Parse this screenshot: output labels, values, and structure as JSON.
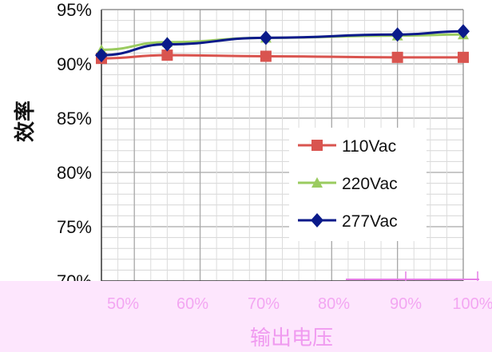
{
  "chart_data": {
    "type": "line",
    "title": "",
    "xlabel": "输出电压",
    "ylabel": "效率",
    "categories": [
      "50%",
      "60%",
      "70%",
      "80%",
      "90%",
      "100%"
    ],
    "x": [
      50,
      60,
      70,
      80,
      90,
      100
    ],
    "xlim": [
      45,
      100
    ],
    "ylim": [
      70,
      95
    ],
    "y_ticks": [
      "70%",
      "75%",
      "80%",
      "85%",
      "90%",
      "95%"
    ],
    "grid": true,
    "legend_position": "right",
    "series": [
      {
        "name": "110Vac",
        "color": "#d9544f",
        "marker": "square",
        "x": [
          45,
          55,
          70,
          90,
          100
        ],
        "values": [
          90.5,
          90.8,
          90.7,
          90.6,
          90.6
        ]
      },
      {
        "name": "220Vac",
        "color": "#9acb5f",
        "marker": "triangle",
        "x": [
          45,
          55,
          70,
          90,
          100
        ],
        "values": [
          91.3,
          92.0,
          92.4,
          92.6,
          92.7
        ]
      },
      {
        "name": "277Vac",
        "color": "#0a1a8a",
        "marker": "diamond",
        "x": [
          45,
          55,
          70,
          90,
          100
        ],
        "values": [
          90.8,
          91.8,
          92.4,
          92.7,
          93.0
        ]
      }
    ]
  }
}
